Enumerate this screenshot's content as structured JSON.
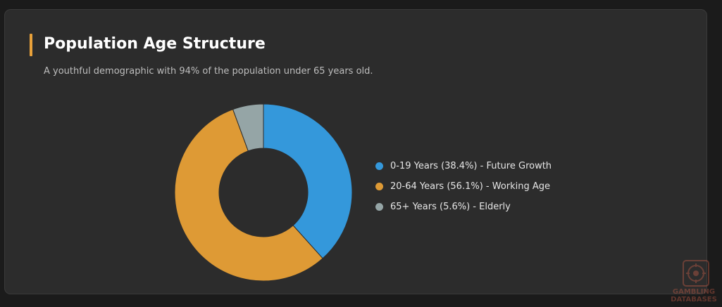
{
  "colors": {
    "accent": "#e8a13a",
    "background": "#1b1b1b",
    "card": "#2c2c2c"
  },
  "header": {
    "title": "Population Age Structure",
    "subtitle": "A youthful demographic with 94% of the population under 65 years old."
  },
  "chart_data": {
    "type": "pie",
    "donut": true,
    "title": "Population Age Structure",
    "subtitle": "A youthful demographic with 94% of the population under 65 years old.",
    "legend_position": "right",
    "slices": [
      {
        "label": "0-19 Years (38.4%) - Future Growth",
        "value": 38.4,
        "color": "#3498db"
      },
      {
        "label": "20-64 Years (56.1%) - Working Age",
        "value": 56.1,
        "color": "#de9a35"
      },
      {
        "label": "65+ Years (5.6%) - Elderly",
        "value": 5.6,
        "color": "#95a5a6"
      }
    ]
  },
  "watermark": {
    "text_line1": "GAMBLING",
    "text_line2": "DATABASES"
  }
}
